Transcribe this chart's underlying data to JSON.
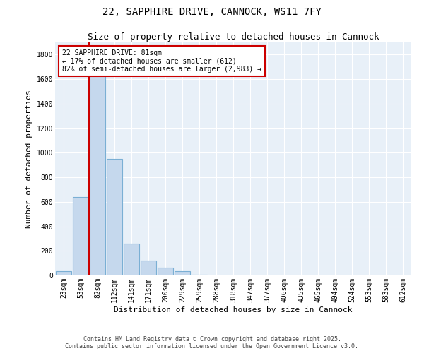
{
  "title1": "22, SAPPHIRE DRIVE, CANNOCK, WS11 7FY",
  "title2": "Size of property relative to detached houses in Cannock",
  "xlabel": "Distribution of detached houses by size in Cannock",
  "ylabel": "Number of detached properties",
  "categories": [
    "23sqm",
    "53sqm",
    "82sqm",
    "112sqm",
    "141sqm",
    "171sqm",
    "200sqm",
    "229sqm",
    "259sqm",
    "288sqm",
    "318sqm",
    "347sqm",
    "377sqm",
    "406sqm",
    "435sqm",
    "465sqm",
    "494sqm",
    "524sqm",
    "553sqm",
    "583sqm",
    "612sqm"
  ],
  "values": [
    35,
    640,
    1650,
    950,
    260,
    120,
    65,
    35,
    8,
    2,
    2,
    2,
    2,
    2,
    2,
    2,
    2,
    2,
    2,
    2,
    2
  ],
  "bar_facecolor": "#c5d8ed",
  "bar_edgecolor": "#7aafd4",
  "vline_color": "#cc0000",
  "background_color": "#e8f0f8",
  "grid_color": "#ffffff",
  "annotation_text": "22 SAPPHIRE DRIVE: 81sqm\n← 17% of detached houses are smaller (612)\n82% of semi-detached houses are larger (2,983) →",
  "annotation_box_edgecolor": "#cc0000",
  "ylim": [
    0,
    1900
  ],
  "yticks": [
    0,
    200,
    400,
    600,
    800,
    1000,
    1200,
    1400,
    1600,
    1800
  ],
  "footer1": "Contains HM Land Registry data © Crown copyright and database right 2025.",
  "footer2": "Contains public sector information licensed under the Open Government Licence v3.0.",
  "title_fontsize": 10,
  "subtitle_fontsize": 9,
  "axis_label_fontsize": 8,
  "tick_fontsize": 7,
  "annotation_fontsize": 7,
  "footer_fontsize": 6
}
